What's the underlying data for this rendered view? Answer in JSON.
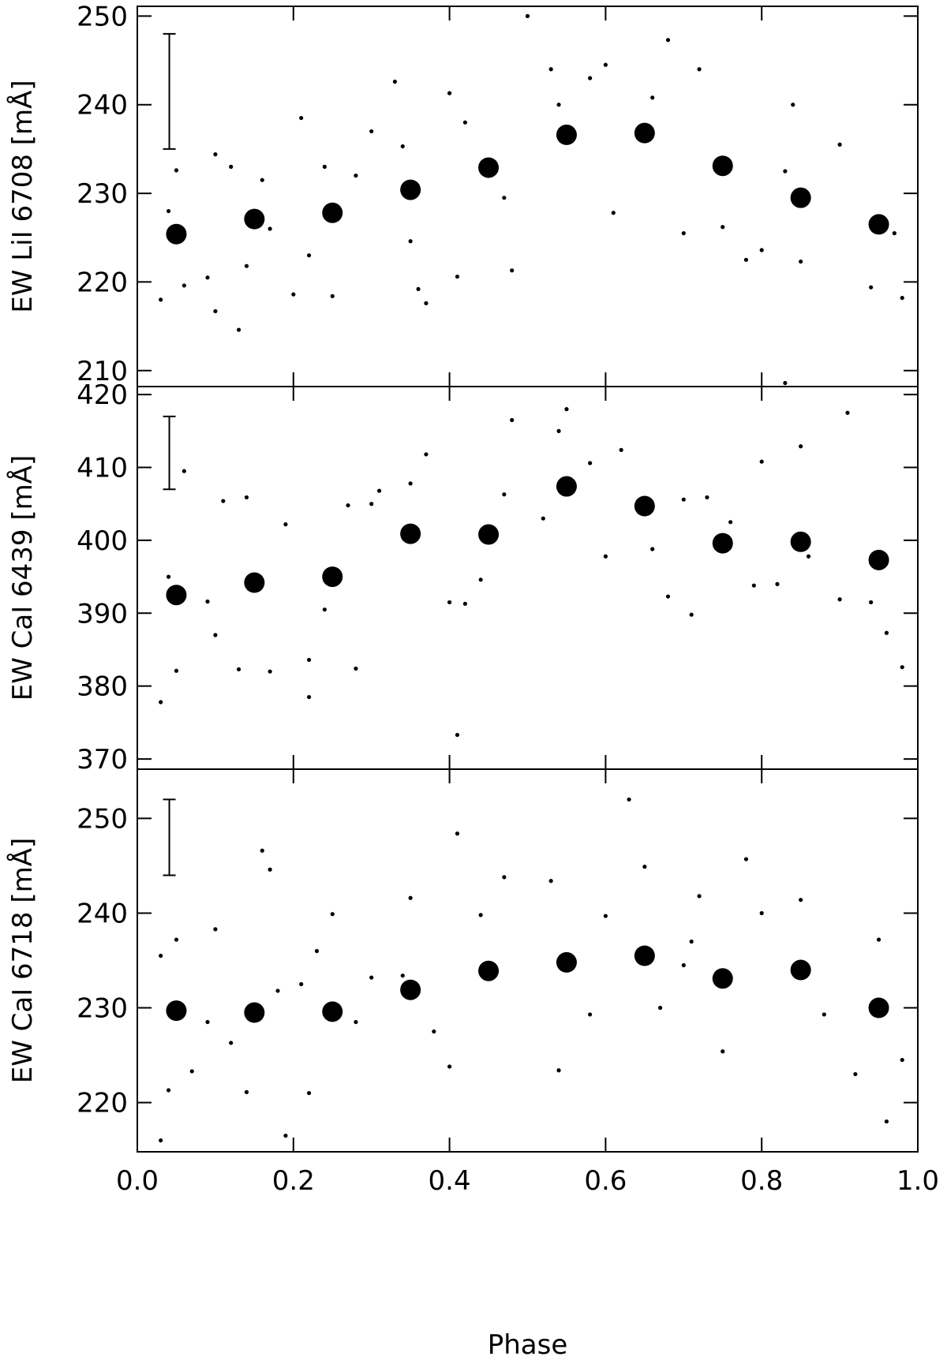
{
  "chart_data": [
    {
      "type": "scatter",
      "ylabel": "EW LiI 6708 [mÅ]",
      "xlim": [
        0,
        1
      ],
      "ylim": [
        208.2,
        251.1
      ],
      "yticks": [
        210,
        220,
        230,
        240,
        250
      ],
      "error_bar": {
        "x": 0.041,
        "low": 235,
        "high": 248
      },
      "points": {
        "x": [
          0.03,
          0.04,
          0.05,
          0.06,
          0.09,
          0.1,
          0.1,
          0.12,
          0.13,
          0.14,
          0.16,
          0.17,
          0.2,
          0.21,
          0.22,
          0.24,
          0.25,
          0.28,
          0.3,
          0.33,
          0.34,
          0.35,
          0.36,
          0.37,
          0.4,
          0.41,
          0.42,
          0.47,
          0.48,
          0.53,
          0.54,
          0.58,
          0.6,
          0.61,
          0.66,
          0.68,
          0.7,
          0.72,
          0.75,
          0.78,
          0.8,
          0.83,
          0.84,
          0.85,
          0.9,
          0.94,
          0.97,
          0.98,
          0.5,
          0.83
        ],
        "y": [
          218,
          228,
          232.6,
          219.6,
          220.5,
          234.4,
          216.7,
          233,
          214.6,
          221.8,
          231.5,
          226,
          218.6,
          238.5,
          223,
          233,
          218.4,
          232,
          237,
          242.6,
          235.3,
          224.6,
          219.2,
          217.6,
          241.3,
          220.6,
          238,
          229.5,
          221.3,
          244,
          240,
          243,
          244.5,
          227.8,
          240.8,
          247.3,
          225.5,
          244,
          226.2,
          222.5,
          223.6,
          232.5,
          240,
          222.3,
          235.5,
          219.4,
          225.5,
          218.2,
          250,
          208.6
        ]
      },
      "means": {
        "x": [
          0.05,
          0.15,
          0.25,
          0.35,
          0.45,
          0.55,
          0.65,
          0.75,
          0.85,
          0.95
        ],
        "y": [
          225.4,
          227.1,
          227.8,
          230.4,
          232.9,
          236.6,
          236.8,
          233.1,
          229.5,
          226.5
        ]
      }
    },
    {
      "type": "scatter",
      "ylabel": "EW CaI 6439 [mÅ]",
      "xlim": [
        0,
        1
      ],
      "ylim": [
        368.6,
        421.1
      ],
      "yticks": [
        370,
        380,
        390,
        400,
        410,
        420
      ],
      "error_bar": {
        "x": 0.041,
        "low": 407,
        "high": 417
      },
      "points": {
        "x": [
          0.03,
          0.04,
          0.05,
          0.06,
          0.09,
          0.1,
          0.11,
          0.13,
          0.14,
          0.17,
          0.19,
          0.22,
          0.22,
          0.24,
          0.27,
          0.28,
          0.3,
          0.31,
          0.35,
          0.37,
          0.4,
          0.41,
          0.42,
          0.44,
          0.47,
          0.48,
          0.52,
          0.54,
          0.55,
          0.6,
          0.62,
          0.66,
          0.68,
          0.71,
          0.73,
          0.76,
          0.79,
          0.82,
          0.85,
          0.86,
          0.9,
          0.91,
          0.94,
          0.96,
          0.98,
          0.7,
          0.8,
          0.58
        ],
        "y": [
          377.8,
          395,
          382.1,
          409.5,
          391.6,
          387,
          405.4,
          382.3,
          405.9,
          382,
          402.2,
          383.6,
          378.5,
          390.5,
          404.8,
          382.4,
          405,
          406.8,
          407.8,
          411.8,
          391.5,
          373.3,
          391.3,
          394.6,
          406.3,
          416.5,
          403,
          415,
          418,
          397.8,
          412.4,
          398.8,
          392.3,
          389.8,
          405.9,
          402.5,
          393.8,
          394,
          412.9,
          397.8,
          391.9,
          417.5,
          391.5,
          387.3,
          382.6,
          405.6,
          410.8,
          410.6
        ]
      },
      "means": {
        "x": [
          0.05,
          0.15,
          0.25,
          0.35,
          0.45,
          0.55,
          0.65,
          0.75,
          0.85,
          0.95
        ],
        "y": [
          392.5,
          394.2,
          395,
          400.9,
          400.8,
          407.4,
          404.7,
          399.6,
          399.8,
          397.3
        ]
      }
    },
    {
      "type": "scatter",
      "ylabel": "EW CaI 6718 [mÅ]",
      "xlabel": "Phase",
      "xlim": [
        0,
        1
      ],
      "xticks": [
        {
          "value": 0,
          "label": "0.0"
        },
        0.2,
        0.4,
        0.6,
        0.8,
        {
          "value": 1,
          "label": "1.0"
        }
      ],
      "ylim": [
        214.8,
        255.2
      ],
      "yticks": [
        220,
        230,
        240,
        250
      ],
      "error_bar": {
        "x": 0.041,
        "low": 244,
        "high": 252
      },
      "points": {
        "x": [
          0.03,
          0.03,
          0.04,
          0.05,
          0.07,
          0.09,
          0.1,
          0.12,
          0.14,
          0.16,
          0.17,
          0.19,
          0.21,
          0.22,
          0.23,
          0.25,
          0.28,
          0.3,
          0.35,
          0.38,
          0.4,
          0.41,
          0.47,
          0.53,
          0.54,
          0.58,
          0.63,
          0.65,
          0.67,
          0.71,
          0.72,
          0.75,
          0.78,
          0.8,
          0.85,
          0.88,
          0.92,
          0.95,
          0.96,
          0.98,
          0.6,
          0.44,
          0.34,
          0.18,
          0.7
        ],
        "y": [
          216,
          235.5,
          221.3,
          237.2,
          223.3,
          228.5,
          238.3,
          226.3,
          221.1,
          246.6,
          244.6,
          216.5,
          232.5,
          221,
          236,
          239.9,
          228.5,
          233.2,
          241.6,
          227.5,
          223.8,
          248.4,
          243.8,
          243.4,
          223.4,
          229.3,
          252,
          244.9,
          230,
          237,
          241.8,
          225.4,
          245.7,
          240,
          241.4,
          229.3,
          223,
          237.2,
          218,
          224.5,
          239.7,
          239.8,
          233.4,
          231.8,
          234.5
        ]
      },
      "means": {
        "x": [
          0.05,
          0.15,
          0.25,
          0.35,
          0.45,
          0.55,
          0.65,
          0.75,
          0.85,
          0.95
        ],
        "y": [
          229.7,
          229.5,
          229.6,
          231.9,
          233.9,
          234.8,
          235.5,
          233.1,
          234.0,
          230.0
        ]
      }
    }
  ]
}
